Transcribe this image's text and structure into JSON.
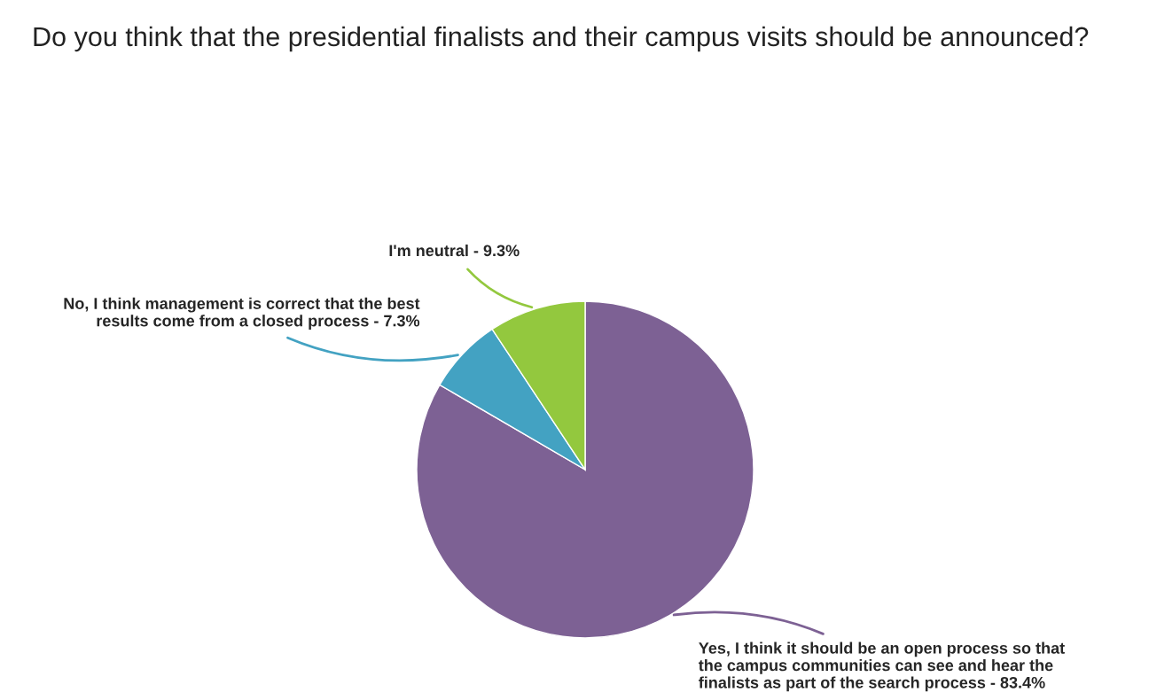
{
  "chart_data": {
    "type": "pie",
    "title": "Do you think that the presidential finalists and their campus visits should be announced?",
    "categories": [
      "Yes, I think it should be an open process so that\nthe campus communities can see and hear the\nfinalists as part of the search process",
      "No, I think management is correct that the best\nresults come from a closed process",
      "I'm neutral"
    ],
    "values": [
      83.4,
      7.3,
      9.3
    ],
    "value_labels": [
      "83.4%",
      "7.3%",
      "9.3%"
    ],
    "colors": [
      "#7d6194",
      "#43a2c2",
      "#93c83e"
    ]
  }
}
